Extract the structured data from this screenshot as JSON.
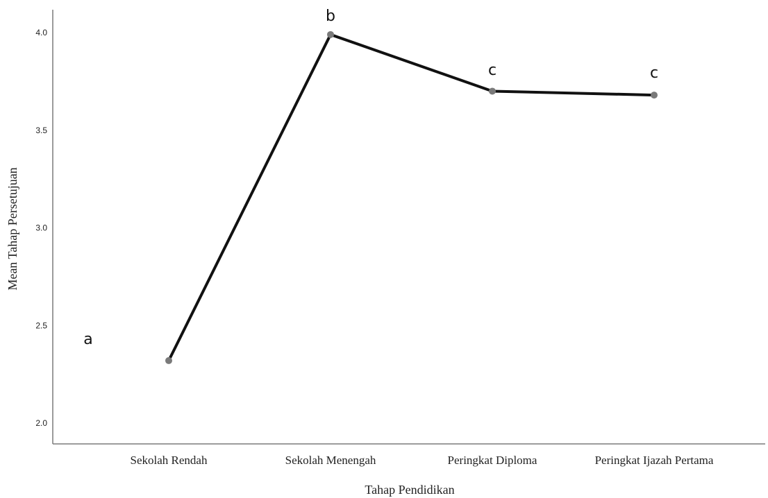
{
  "chart_data": {
    "type": "line",
    "categories": [
      "Sekolah Rendah",
      "Sekolah Menengah",
      "Peringkat Diploma",
      "Peringkat Ijazah Pertama"
    ],
    "values": [
      2.32,
      3.99,
      3.7,
      3.68
    ],
    "annotations": [
      "a",
      "b",
      "c",
      "c"
    ],
    "xlabel": "Tahap Pendidikan",
    "ylabel": "Mean Tahap Persetujuan",
    "yticks": [
      "2.0",
      "2.5",
      "3.0",
      "3.5",
      "4.0"
    ],
    "ylim": [
      1.95,
      4.15
    ],
    "grid": false,
    "legend": "none"
  }
}
